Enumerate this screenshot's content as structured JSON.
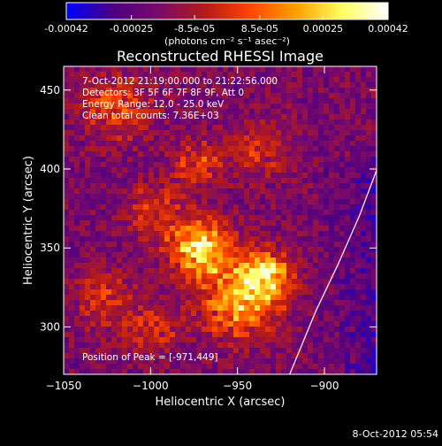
{
  "colorbar": {
    "tick_labels": [
      "-0.00042",
      "-0.00025",
      "-8.5e-05",
      "8.5e-05",
      "0.00025",
      "0.00042"
    ],
    "tick_values": [
      -0.00042,
      -0.00025,
      -8.5e-05,
      8.5e-05,
      0.00025,
      0.00042
    ],
    "range": [
      -0.00042,
      0.00042
    ],
    "unit_label": "(photons cm⁻² s⁻¹ asec⁻²)",
    "colors": [
      "#0000ff",
      "#4b0082",
      "#7a0a6a",
      "#b31a1a",
      "#ff4500",
      "#ffa000",
      "#ffff60",
      "#ffffff"
    ]
  },
  "chart_data": {
    "type": "heatmap",
    "title": "Reconstructed RHESSI Image",
    "xlabel": "Heliocentric X (arcsec)",
    "ylabel": "Heliocentric Y (arcsec)",
    "xlim": [
      -1050,
      -870
    ],
    "ylim": [
      270,
      465
    ],
    "x_ticks": [
      -1050,
      -1000,
      -950,
      -900
    ],
    "y_ticks": [
      300,
      350,
      400,
      450
    ],
    "x_tick_labels": [
      "−1050",
      "−1000",
      "−950",
      "−900"
    ],
    "y_tick_labels": [
      "300",
      "350",
      "400",
      "450"
    ],
    "limb_points": [
      [
        -920,
        270
      ],
      [
        -905,
        310
      ],
      [
        -892,
        340
      ],
      [
        -880,
        370
      ],
      [
        -868,
        405
      ],
      [
        -858,
        430
      ]
    ],
    "peak_position": [
      -971,
      449
    ],
    "info_lines": [
      "7-Oct-2012 21:19:00.000 to 21:22:56.000",
      "Detectors: 3F 5F 6F 7F 8F 9F, Att 0",
      "Energy Range: 12.0 - 25.0 keV",
      "Clean     total counts: 7.36E+03"
    ],
    "peak_text": "Position of Peak = [-971,449]"
  },
  "footer": {
    "date": "8-Oct-2012 05:54"
  }
}
